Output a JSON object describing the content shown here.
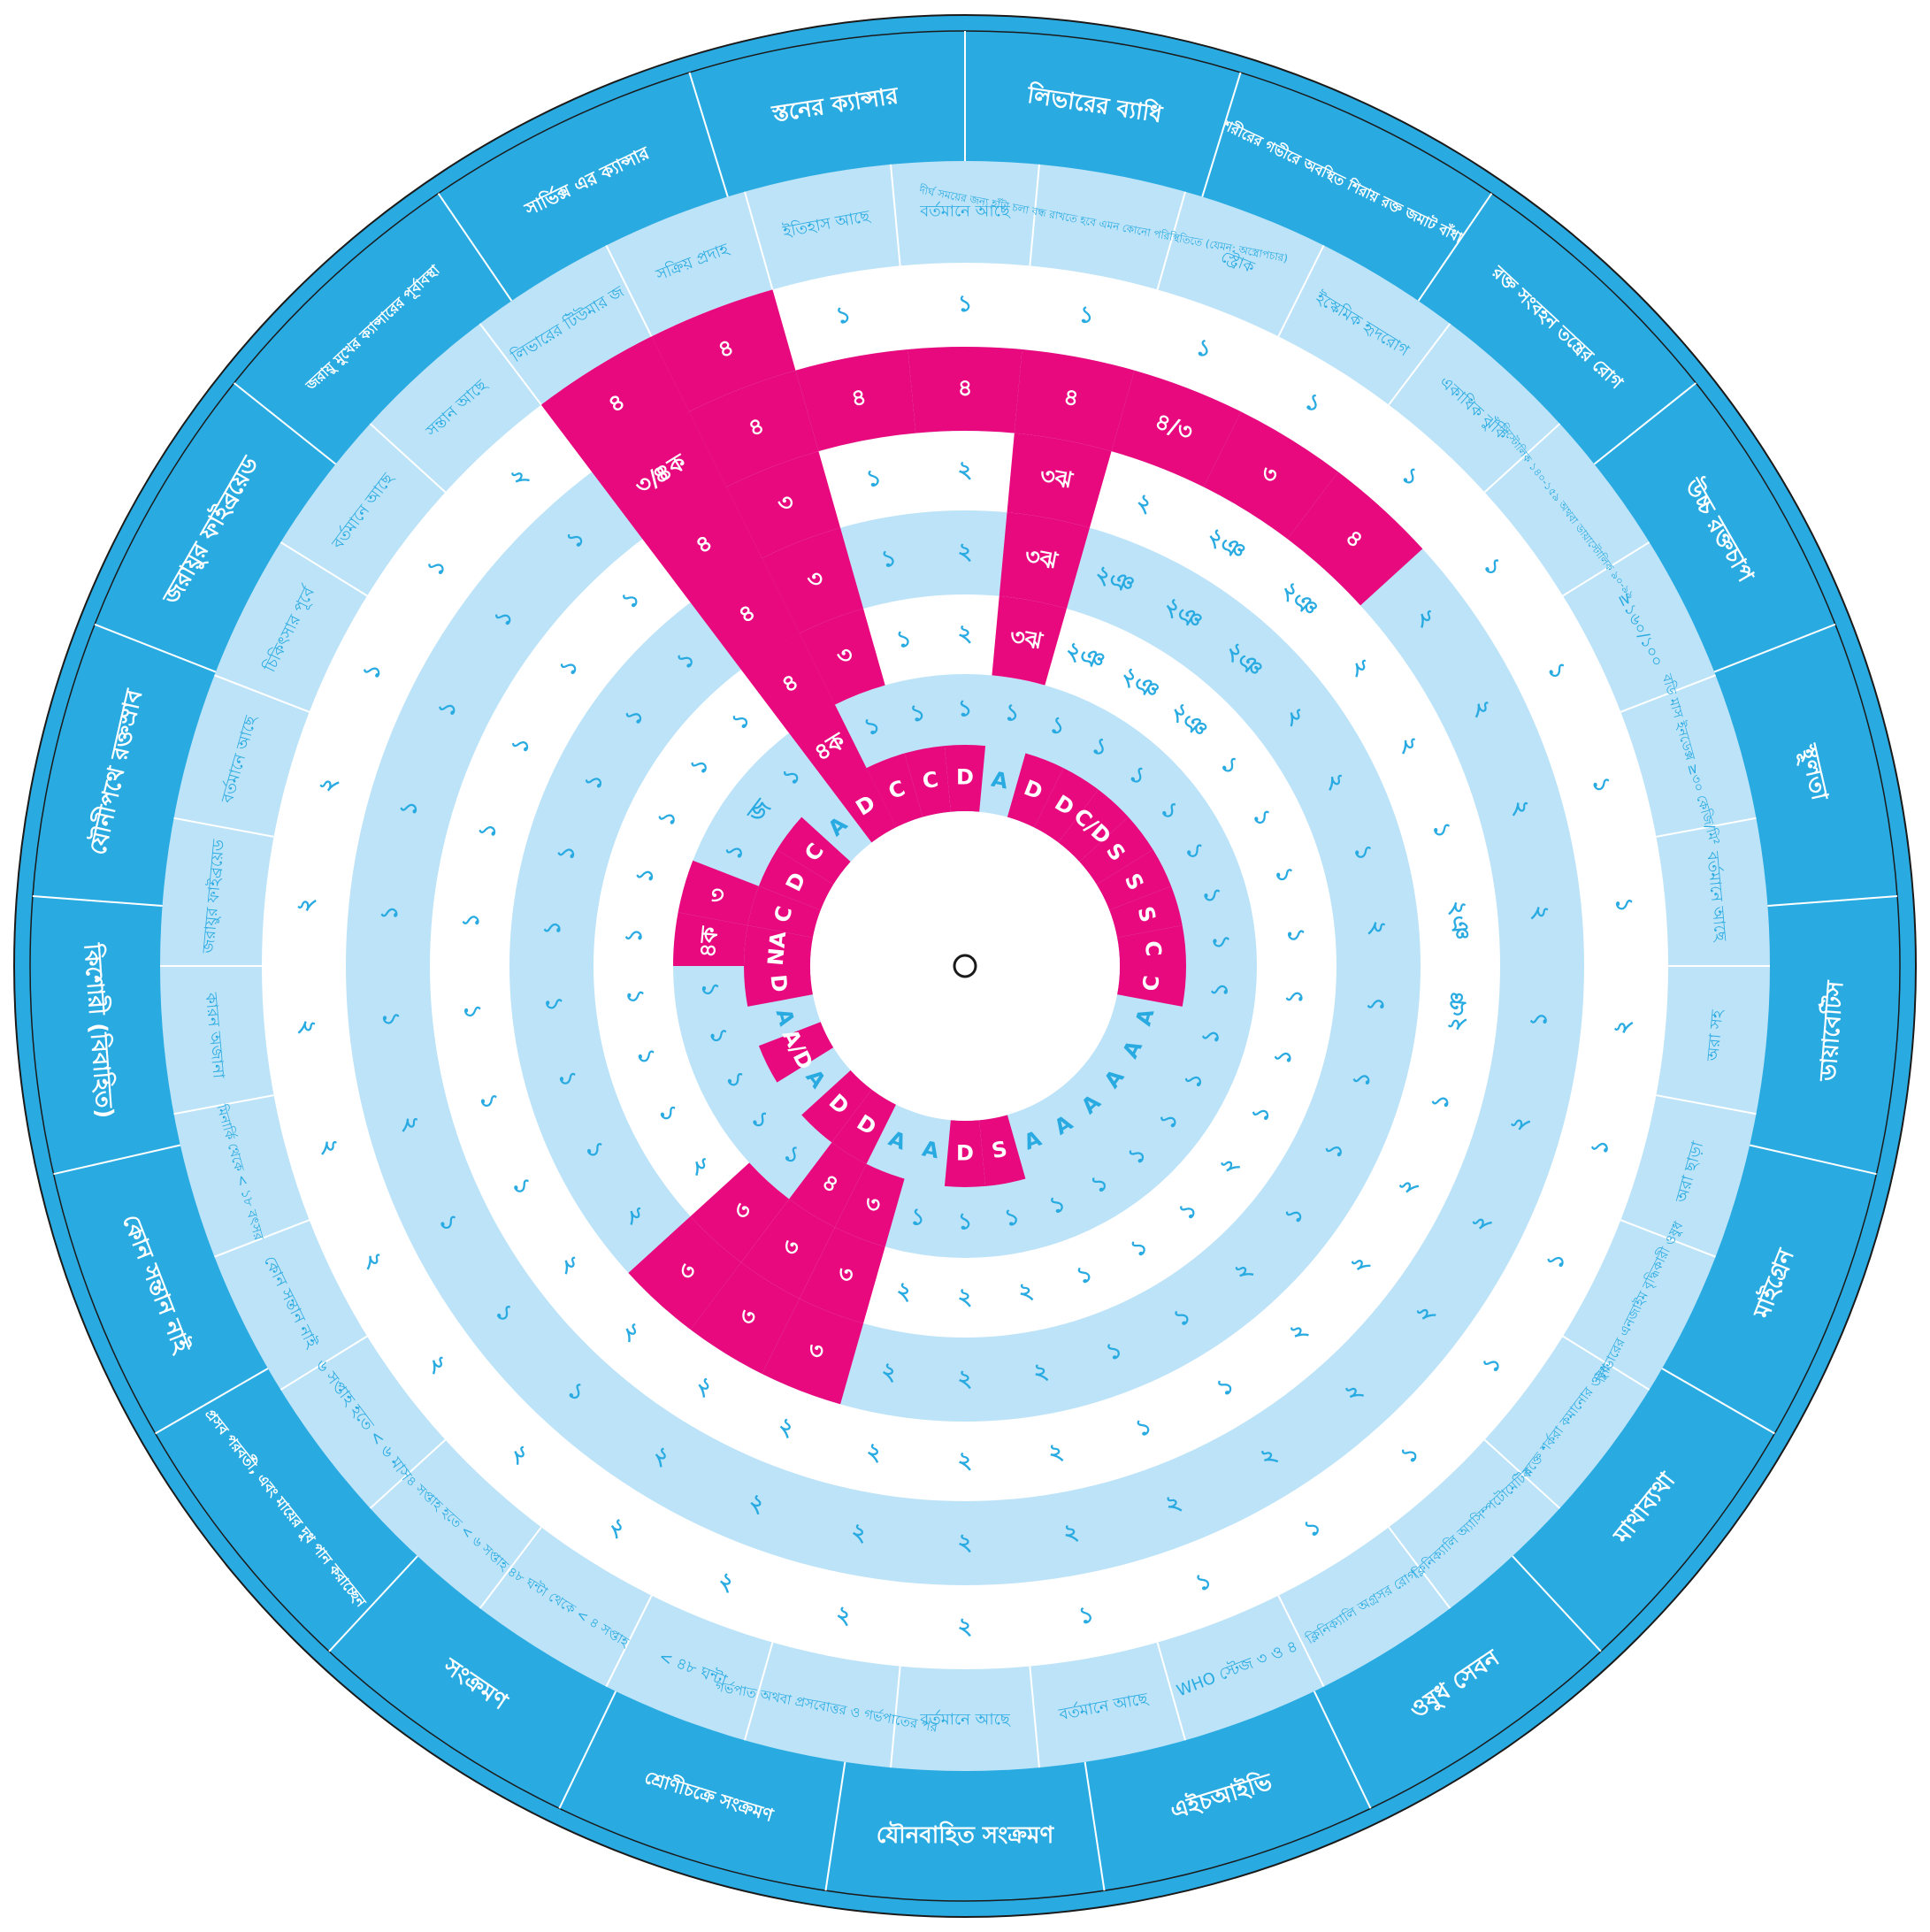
{
  "colors": {
    "outer_ring": "#29abe2",
    "light_blue": "#bde3f8",
    "white": "#ffffff",
    "magenta": "#e8097f",
    "text_blue": "#29abe2",
    "text_white": "#ffffff",
    "stroke": "#1a1a1a"
  },
  "categories": [
    {
      "label": "লিভারের ব্যাধি"
    },
    {
      "label": "শরীরের গভীরে অবস্থিত শিরায় রক্ত জমাট বাঁধা"
    },
    {
      "label": "রক্ত সংবহন তন্ত্রের রোগ"
    },
    {
      "label": "উচ্চ রক্তচাপ"
    },
    {
      "label": "স্থূলতা"
    },
    {
      "label": "ডায়াবেটিস"
    },
    {
      "label": "মাইগ্রেন"
    },
    {
      "label": "মাথাব্যথা"
    },
    {
      "label": "ওষুধ সেবন"
    },
    {
      "label": "এইচআইভি"
    },
    {
      "label": "যৌনবাহিত সংক্রমণ"
    },
    {
      "label": "শ্রোণীচক্রে সংক্রমণ"
    },
    {
      "label": "সংক্রমণ"
    },
    {
      "label": "প্রসব পরবর্তী, এবং মায়ের দুধ পান করাচ্ছেন"
    },
    {
      "label": "কোন সন্তান নাই"
    },
    {
      "label": "কিশোরী (বিবাহিত)"
    },
    {
      "label": "যৌনীপথে রক্তস্রাব"
    },
    {
      "label": "জরায়ুর ফাইব্রয়েড"
    },
    {
      "label": "জরায়ু মুখের ক্যান্সারের পূর্বাবস্থা"
    },
    {
      "label": "সার্ভিক্স এর ক্যান্সার"
    },
    {
      "label": "স্তনের ক্যান্সার"
    }
  ],
  "conditions": [
    {
      "label": "লিভারের টিউমার জ"
    },
    {
      "label": "সক্রিয় প্রদাহ"
    },
    {
      "label": "ইতিহাস আছে"
    },
    {
      "label": "বর্তমানে আছে"
    },
    {
      "label": "দীর্ঘ সময়ের জন্য হাঁটা চলা বন্ধ রাখতে হবে এমন কোনো পরিস্থিতিতে (যেমন: অস্ত্রোপচার)"
    },
    {
      "label": "স্ট্রোক"
    },
    {
      "label": "ইস্কেমিক হৃদরোগ"
    },
    {
      "label": "একাধিক ঝুঁকি"
    },
    {
      "label": "সিস্টোলিক ১৪০-১৫৯ অথবা ডায়াস্টোলিক ৯০-৯৯"
    },
    {
      "label": "≥১৬০/১০০"
    },
    {
      "label": "বডি মাস ইনডেক্স ≥৩০ কেজি/মি²"
    },
    {
      "label": "বর্তমানে আছে"
    },
    {
      "label": "অরা সহ"
    },
    {
      "label": "অরা ছাড়া"
    },
    {
      "label": "লিভারের এনজাইম বৃদ্ধিকারী ওষুধ"
    },
    {
      "label": "রক্তে শর্করা কমানোর ওষুধ"
    },
    {
      "label": "ক্লিনিক্যালি অ্যাসিম্পটোমেটিক"
    },
    {
      "label": "ক্লিনিক্যালি অগ্রসর রোগ"
    },
    {
      "label": "WHO স্টেজ ৩ ও ৪"
    },
    {
      "label": "বর্তমানে আছে"
    },
    {
      "label": "বর্তমানে আছে"
    },
    {
      "label": "গর্ভপাত অথবা প্রসবোত্তর ও গর্ভপাতের পর"
    },
    {
      "label": "< ৪৮ ঘন্টা"
    },
    {
      "label": "৪৮ ঘন্টা থেকে < ৪ সপ্তাহ"
    },
    {
      "label": "৪ সপ্তাহ হতে < ৬ সপ্তাহ"
    },
    {
      "label": "৬ সপ্তাহ হতে < ৬ মাস"
    },
    {
      "label": "কোন সন্তান নাই"
    },
    {
      "label": "মিনার্কি থেকে < ১৮ বৎসর"
    },
    {
      "label": "কারন অজানা"
    },
    {
      "label": "জরায়ুর ফাইব্রয়েড"
    },
    {
      "label": "বর্তমানে আছে"
    },
    {
      "label": "চিকিৎসার পূর্বে"
    },
    {
      "label": "বর্তমানে আছে"
    },
    {
      "label": "সন্তান আছে"
    }
  ],
  "method_rings": [
    [
      "৪",
      "৪",
      "১",
      "১",
      "১",
      "১",
      "১",
      "১",
      "১",
      "১",
      "১",
      "১",
      "২",
      "১",
      "১",
      "১",
      "১",
      "১",
      "১",
      "১",
      "২",
      "২",
      "২",
      "২",
      "২",
      "২",
      "২",
      "২",
      "২",
      "২",
      "২",
      "১",
      "১",
      "২",
      "৪"
    ],
    [
      "৩/৪ক",
      "৪",
      "৪",
      "৪",
      "৪",
      "৪/৩",
      "৩",
      "৪",
      "২",
      "২",
      "২",
      "২",
      "১",
      "২",
      "২",
      "২",
      "২",
      "২",
      "২",
      "২",
      "২",
      "২",
      "২",
      "২",
      "১",
      "১",
      "১",
      "২",
      "১",
      "১",
      "১",
      "১",
      "১",
      "১",
      "৪"
    ],
    [
      "৪",
      "৩",
      "১",
      "২",
      "৩ঝ",
      "২",
      "২ঞ",
      "২ঞ",
      "২",
      "২",
      "১",
      "২ঞ",
      "২ঞ",
      "১",
      "২",
      "২",
      "২",
      "১",
      "১",
      "২",
      "২",
      "২",
      "২",
      "২",
      "২",
      "২",
      "১",
      "১",
      "১",
      "১",
      "১",
      "১",
      "১",
      "১",
      "৪"
    ],
    [
      "৪",
      "৩",
      "১",
      "২",
      "৩ঝ",
      "২ঞ",
      "২ঞ",
      "২ঞ",
      "২",
      "২",
      "১",
      "২",
      "১",
      "১",
      "১",
      "১",
      "২",
      "১",
      "১",
      "২",
      "২",
      "২",
      "৩",
      "৩",
      "৩",
      "২",
      "১",
      "১",
      "১",
      "১",
      "১",
      "১",
      "১",
      "১",
      "৪"
    ],
    [
      "৪",
      "৩",
      "১",
      "২",
      "৩ঝ",
      "২ঞ",
      "২ঞ",
      "২ঞ",
      "১",
      "১",
      "১",
      "১",
      "১",
      "১",
      "১",
      "২",
      "১",
      "১",
      "১",
      "২",
      "২",
      "২",
      "৩",
      "৩",
      "৩",
      "২",
      "১",
      "১",
      "১",
      "১",
      "১",
      "১",
      "১",
      "১",
      "৪"
    ],
    [
      "৪ক",
      "১",
      "১",
      "১",
      "১",
      "১",
      "১",
      "১",
      "১",
      "১",
      "১",
      "১",
      "১",
      "১",
      "১",
      "১",
      "১",
      "১",
      "১",
      "১",
      "১",
      "১",
      "৩",
      "৪",
      "১",
      "১",
      "১",
      "১",
      "১",
      "৪ক",
      "৩",
      "১",
      "জ",
      "১",
      "৪ক"
    ]
  ],
  "inner_codes": [
    "D",
    "C",
    "C",
    "D",
    "A",
    "D",
    "D",
    "C/D",
    "S",
    "S",
    "S",
    "C",
    "C",
    "A",
    "A",
    "A",
    "A",
    "A",
    "A",
    "S",
    "D",
    "A",
    "A",
    "D",
    "D",
    "A",
    "A/D",
    "A",
    "D",
    "NA",
    "C",
    "D",
    "C",
    "A",
    "D"
  ],
  "center_label": ""
}
